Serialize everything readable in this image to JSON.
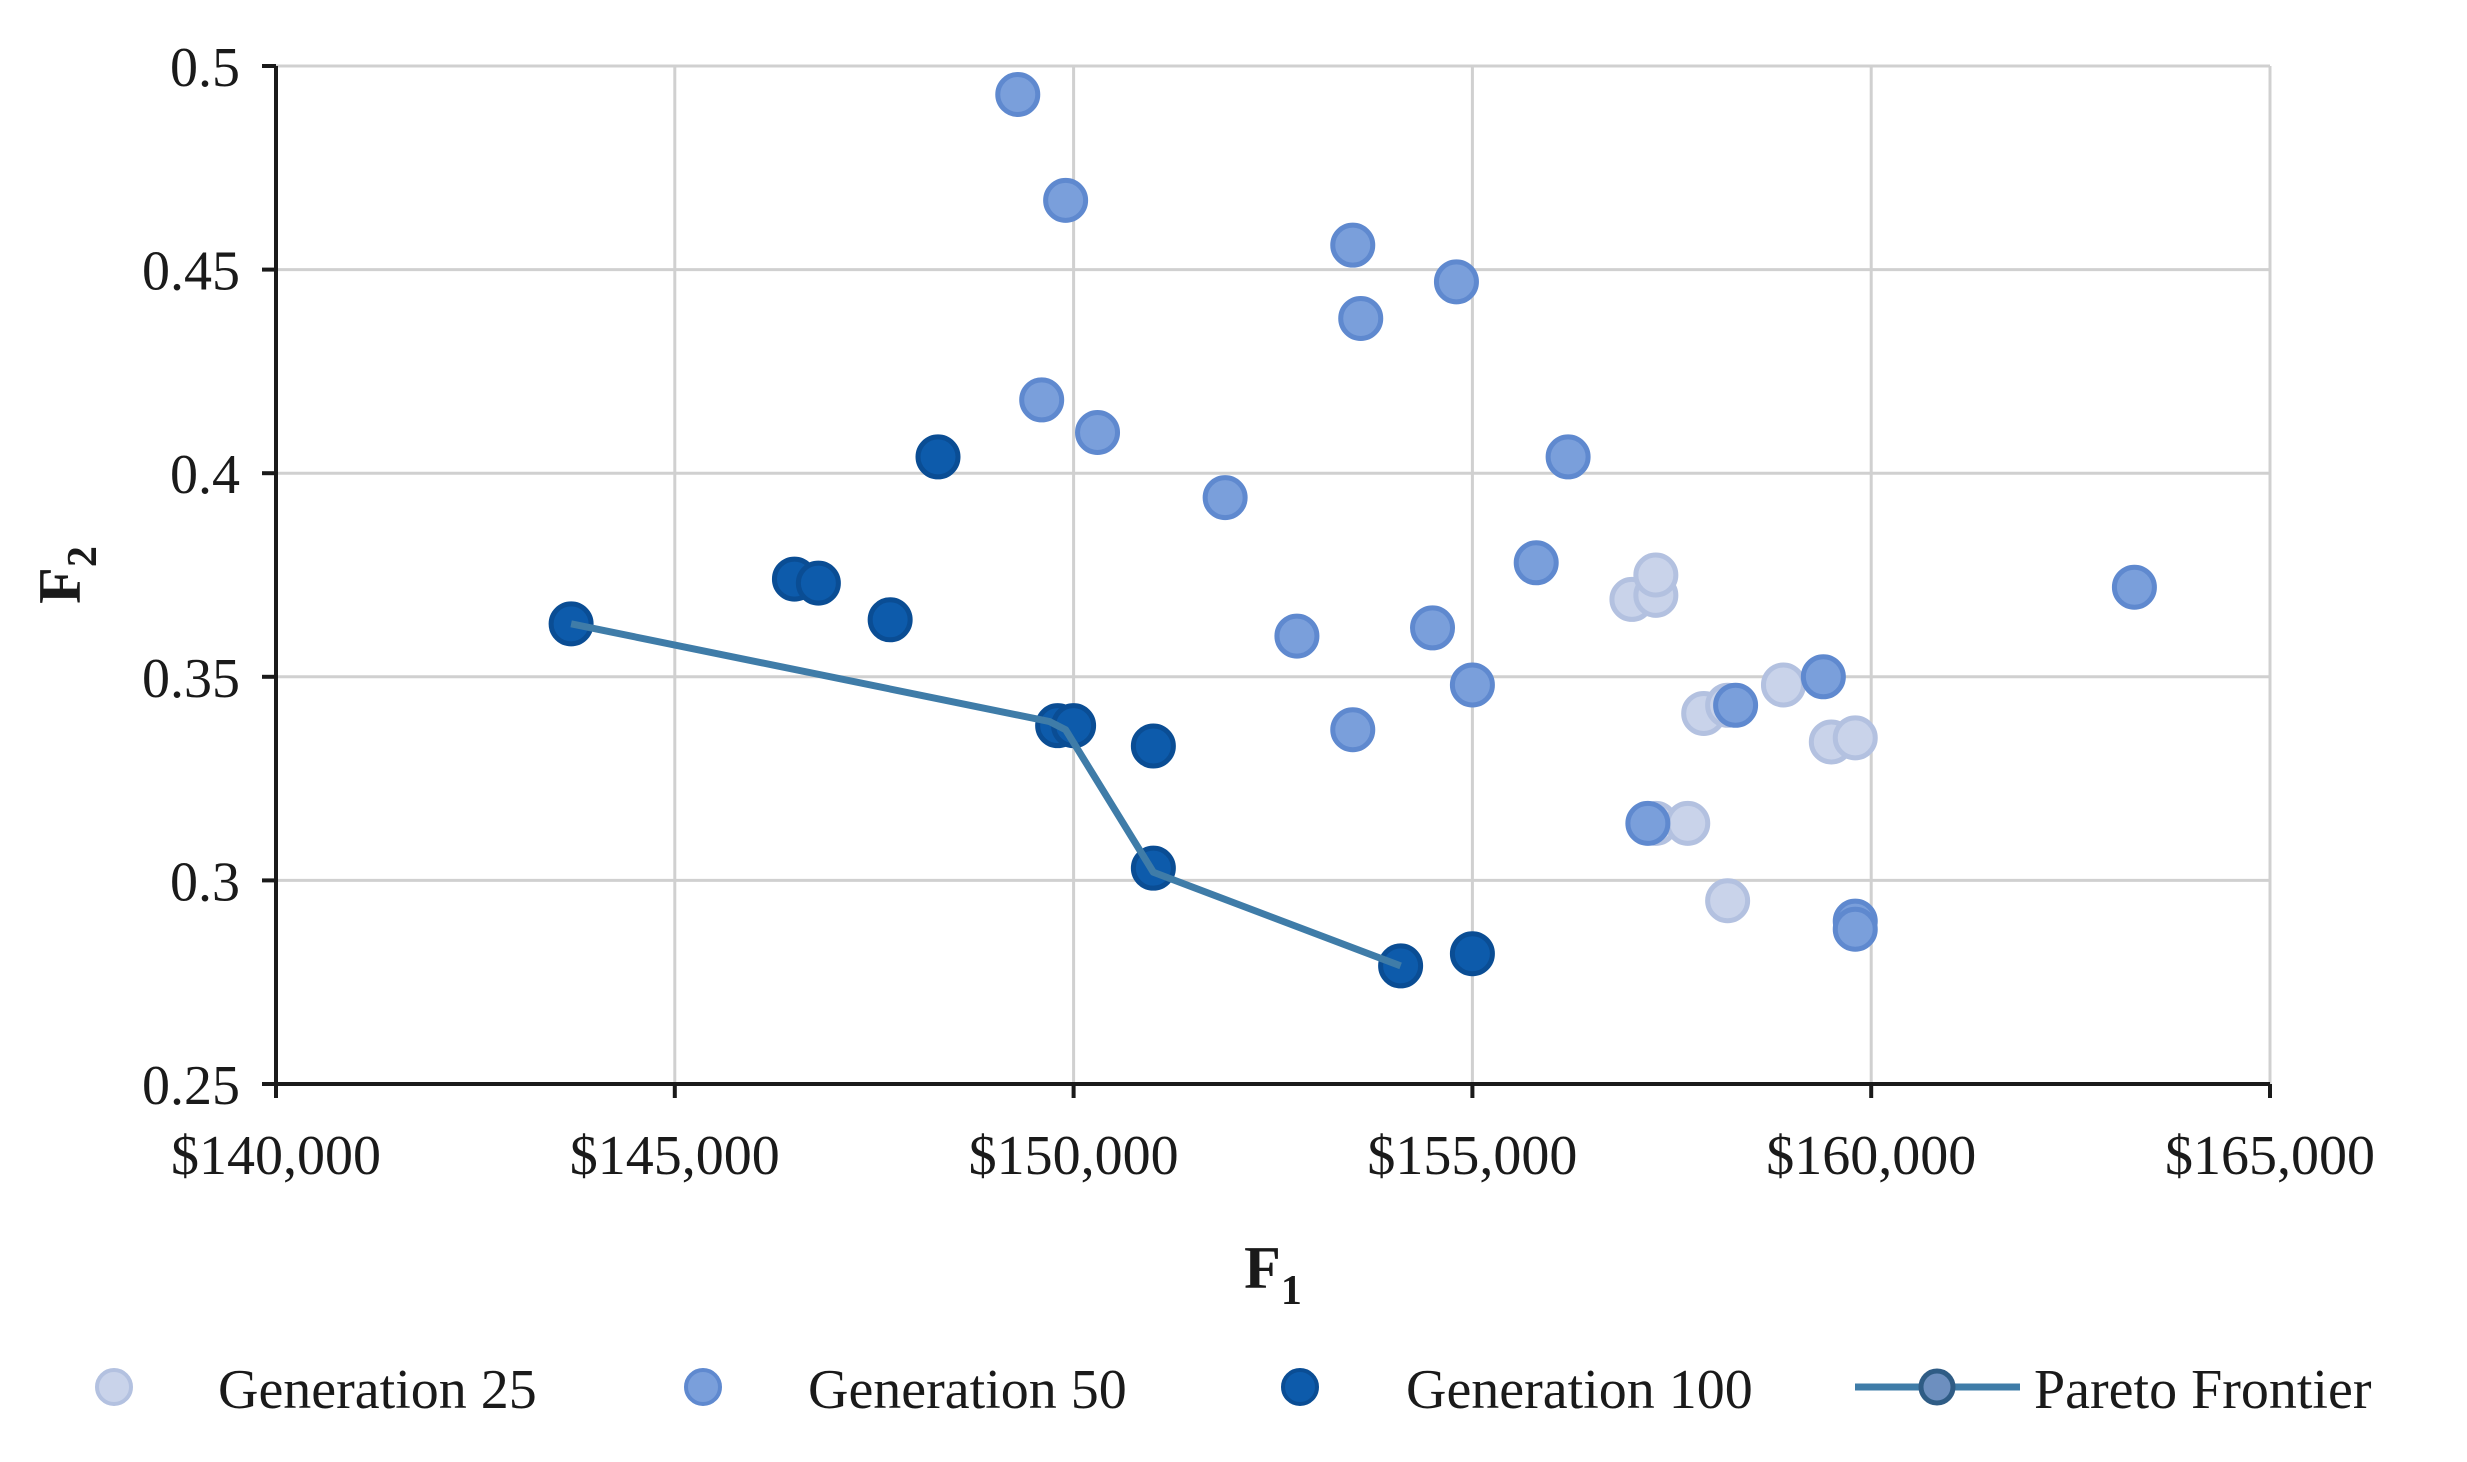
{
  "chart_data": {
    "type": "scatter",
    "title": "",
    "xlabel": "F",
    "xlabel_sub": "1",
    "ylabel": "F",
    "ylabel_sub": "2",
    "xlim": [
      140000,
      165000
    ],
    "ylim": [
      0.25,
      0.5
    ],
    "x_ticks": [
      140000,
      145000,
      150000,
      155000,
      160000,
      165000
    ],
    "x_tick_labels": [
      "$140,000",
      "$145,000",
      "$150,000",
      "$155,000",
      "$160,000",
      "$165,000"
    ],
    "y_ticks": [
      0.25,
      0.3,
      0.35,
      0.4,
      0.45,
      0.5
    ],
    "y_tick_labels": [
      "0.25",
      "0.3",
      "0.35",
      "0.4",
      "0.45",
      "0.5"
    ],
    "grid": true,
    "legend_position": "bottom",
    "series": [
      {
        "name": "Generation 25",
        "kind": "scatter",
        "color": "#c9d3ea",
        "edge": "#b3c1e0",
        "points": [
          {
            "x": 157000,
            "y": 0.369
          },
          {
            "x": 157300,
            "y": 0.37
          },
          {
            "x": 157300,
            "y": 0.375
          },
          {
            "x": 157300,
            "y": 0.314
          },
          {
            "x": 157700,
            "y": 0.314
          },
          {
            "x": 157900,
            "y": 0.341
          },
          {
            "x": 158200,
            "y": 0.343
          },
          {
            "x": 158200,
            "y": 0.295
          },
          {
            "x": 158900,
            "y": 0.348
          },
          {
            "x": 159500,
            "y": 0.334
          },
          {
            "x": 159800,
            "y": 0.335
          }
        ]
      },
      {
        "name": "Generation 50",
        "kind": "scatter",
        "color": "#7a9fdb",
        "edge": "#5f89cf",
        "points": [
          {
            "x": 149300,
            "y": 0.493
          },
          {
            "x": 149900,
            "y": 0.467
          },
          {
            "x": 153500,
            "y": 0.456
          },
          {
            "x": 154800,
            "y": 0.447
          },
          {
            "x": 153600,
            "y": 0.438
          },
          {
            "x": 149600,
            "y": 0.418
          },
          {
            "x": 150300,
            "y": 0.41
          },
          {
            "x": 156200,
            "y": 0.404
          },
          {
            "x": 151900,
            "y": 0.394
          },
          {
            "x": 155800,
            "y": 0.378
          },
          {
            "x": 154500,
            "y": 0.362
          },
          {
            "x": 152800,
            "y": 0.36
          },
          {
            "x": 155000,
            "y": 0.348
          },
          {
            "x": 153500,
            "y": 0.337
          },
          {
            "x": 157200,
            "y": 0.314
          },
          {
            "x": 158300,
            "y": 0.343
          },
          {
            "x": 159400,
            "y": 0.35
          },
          {
            "x": 159800,
            "y": 0.29
          },
          {
            "x": 159800,
            "y": 0.288
          },
          {
            "x": 163300,
            "y": 0.372
          }
        ]
      },
      {
        "name": "Generation 100",
        "kind": "scatter",
        "color": "#0d5bab",
        "edge": "#0a4d94",
        "points": [
          {
            "x": 148300,
            "y": 0.404
          },
          {
            "x": 146500,
            "y": 0.374
          },
          {
            "x": 146800,
            "y": 0.373
          },
          {
            "x": 147700,
            "y": 0.364
          },
          {
            "x": 143700,
            "y": 0.363
          },
          {
            "x": 149800,
            "y": 0.338
          },
          {
            "x": 150000,
            "y": 0.338
          },
          {
            "x": 151000,
            "y": 0.333
          },
          {
            "x": 151000,
            "y": 0.303
          },
          {
            "x": 154100,
            "y": 0.279
          },
          {
            "x": 155000,
            "y": 0.282
          }
        ]
      },
      {
        "name": "Pareto Frontier",
        "kind": "line",
        "color": "#3f7ca8",
        "marker_fill": "#6d8fbf",
        "points": [
          {
            "x": 143700,
            "y": 0.363
          },
          {
            "x": 149700,
            "y": 0.339
          },
          {
            "x": 149900,
            "y": 0.337
          },
          {
            "x": 151000,
            "y": 0.302
          },
          {
            "x": 154100,
            "y": 0.279
          }
        ]
      }
    ]
  }
}
